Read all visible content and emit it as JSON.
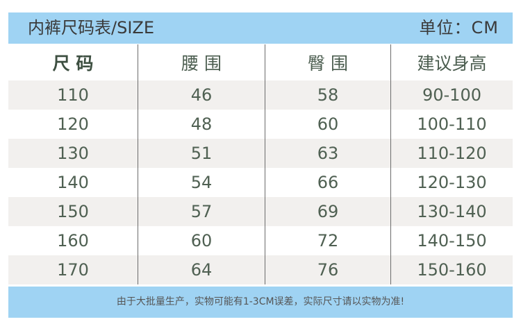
{
  "header": {
    "title": "内裤尺码表/SIZE",
    "unit": "单位：CM"
  },
  "table": {
    "columns": [
      "尺 码",
      "腰 围",
      "臀 围",
      "建议身高"
    ],
    "rows": [
      [
        "110",
        "46",
        "58",
        "90-100"
      ],
      [
        "120",
        "48",
        "60",
        "100-110"
      ],
      [
        "130",
        "51",
        "63",
        "110-120"
      ],
      [
        "140",
        "54",
        "66",
        "120-130"
      ],
      [
        "150",
        "57",
        "69",
        "130-140"
      ],
      [
        "160",
        "60",
        "72",
        "140-150"
      ],
      [
        "170",
        "64",
        "76",
        "150-160"
      ]
    ]
  },
  "footer": {
    "note": "由于大批量生产，实物可能有1-3CM误差，实际尺寸请以实物为准!"
  }
}
